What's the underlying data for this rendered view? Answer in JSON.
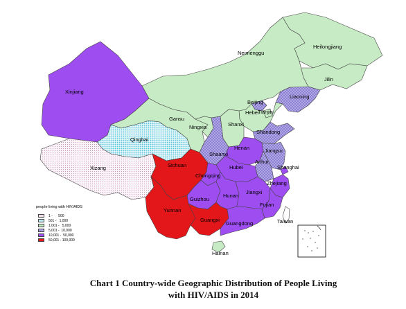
{
  "legend": {
    "title": "people living with HIV/AIDS",
    "items": [
      {
        "range": "1 -      500",
        "color": "#f3e6ef",
        "pattern": "dots-pink"
      },
      {
        "range": "501 -   1,000",
        "color": "#c9ecf2",
        "pattern": "dots-cyan"
      },
      {
        "range": "1,001 -   5,000",
        "color": "#c7ebc4",
        "pattern": "solid"
      },
      {
        "range": "5,001 -  10,000",
        "color": "#a89be0",
        "pattern": "grid"
      },
      {
        "range": "10,001 -  50,000",
        "color": "#9d4df0",
        "pattern": "solid"
      },
      {
        "range": "50,001 - 100,000",
        "color": "#e3161a",
        "pattern": "solid"
      }
    ]
  },
  "provinces": [
    {
      "name": "Heilongjiang",
      "category": 3
    },
    {
      "name": "Jilin",
      "category": 3
    },
    {
      "name": "Liaoning",
      "category": 4
    },
    {
      "name": "Neimenggu",
      "category": 3
    },
    {
      "name": "Beijing",
      "category": 4
    },
    {
      "name": "Tianjin",
      "category": 3
    },
    {
      "name": "Hebei",
      "category": 3
    },
    {
      "name": "Shanxi",
      "category": 3
    },
    {
      "name": "Shandong",
      "category": 4
    },
    {
      "name": "Xinjiang",
      "category": 5
    },
    {
      "name": "Gansu",
      "category": 3
    },
    {
      "name": "Ningxia",
      "category": 3
    },
    {
      "name": "Qinghai",
      "category": 2
    },
    {
      "name": "Xizang",
      "category": 1
    },
    {
      "name": "Shaanxi",
      "category": 4
    },
    {
      "name": "Henan",
      "category": 5
    },
    {
      "name": "Jiangsu",
      "category": 4
    },
    {
      "name": "Anhui",
      "category": 4
    },
    {
      "name": "Shanghai",
      "category": 5
    },
    {
      "name": "Sichuan",
      "category": 6
    },
    {
      "name": "Chongqing",
      "category": 5
    },
    {
      "name": "Hubei",
      "category": 5
    },
    {
      "name": "Zhejiang",
      "category": 5
    },
    {
      "name": "Guizhou",
      "category": 5
    },
    {
      "name": "Hunan",
      "category": 5
    },
    {
      "name": "Jiangxi",
      "category": 5
    },
    {
      "name": "Fujian",
      "category": 5
    },
    {
      "name": "Yunnan",
      "category": 6
    },
    {
      "name": "Guangxi",
      "category": 6
    },
    {
      "name": "Guangdong",
      "category": 5
    },
    {
      "name": "Taiwan",
      "category": 0
    },
    {
      "name": "Hainan",
      "category": 3
    }
  ],
  "caption": {
    "line1": "Chart 1 Country-wide Geographic Distribution of People Living",
    "line2": "with HIV/AIDS in 2014"
  }
}
